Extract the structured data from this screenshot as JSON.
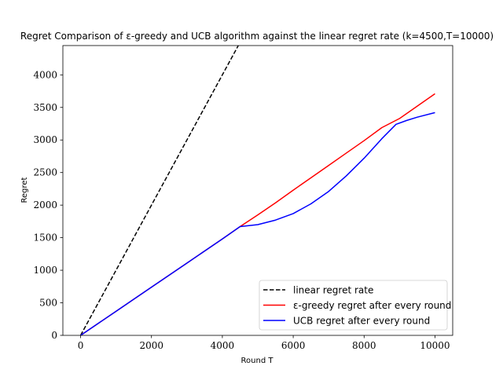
{
  "chart_data": {
    "type": "line",
    "title": "Regret Comparison of ε-greedy and UCB algorithm against the linear regret rate (k=4500,T=10000)",
    "xlabel": "Round T",
    "ylabel": "Regret",
    "xlim": [
      -500,
      10500
    ],
    "ylim": [
      0,
      4450
    ],
    "xticks": [
      0,
      2000,
      4000,
      6000,
      8000,
      10000
    ],
    "yticks": [
      0,
      500,
      1000,
      1500,
      2000,
      2500,
      3000,
      3500,
      4000
    ],
    "grid": false,
    "legend_position": "lower-right",
    "series": [
      {
        "name": "linear regret rate",
        "color": "#000000",
        "dash": true,
        "x": [
          0,
          4450
        ],
        "y": [
          0,
          4450
        ]
      },
      {
        "name": "ε-greedy regret after every round",
        "color": "#ff0000",
        "dash": false,
        "x": [
          0,
          1000,
          2000,
          3000,
          4000,
          4500,
          5000,
          5500,
          6000,
          6500,
          7000,
          7500,
          8000,
          8500,
          9000,
          9500,
          10000
        ],
        "y": [
          0,
          370,
          740,
          1110,
          1480,
          1670,
          1850,
          2035,
          2230,
          2420,
          2610,
          2800,
          2990,
          3190,
          3330,
          3520,
          3710
        ]
      },
      {
        "name": "UCB regret after every round",
        "color": "#0000ff",
        "dash": false,
        "x": [
          0,
          1000,
          2000,
          3000,
          4000,
          4500,
          5000,
          5500,
          6000,
          6500,
          7000,
          7500,
          8000,
          8500,
          8900,
          9200,
          9500,
          10000
        ],
        "y": [
          0,
          370,
          740,
          1110,
          1480,
          1670,
          1700,
          1770,
          1870,
          2020,
          2210,
          2450,
          2720,
          3020,
          3240,
          3300,
          3350,
          3420
        ]
      }
    ]
  }
}
